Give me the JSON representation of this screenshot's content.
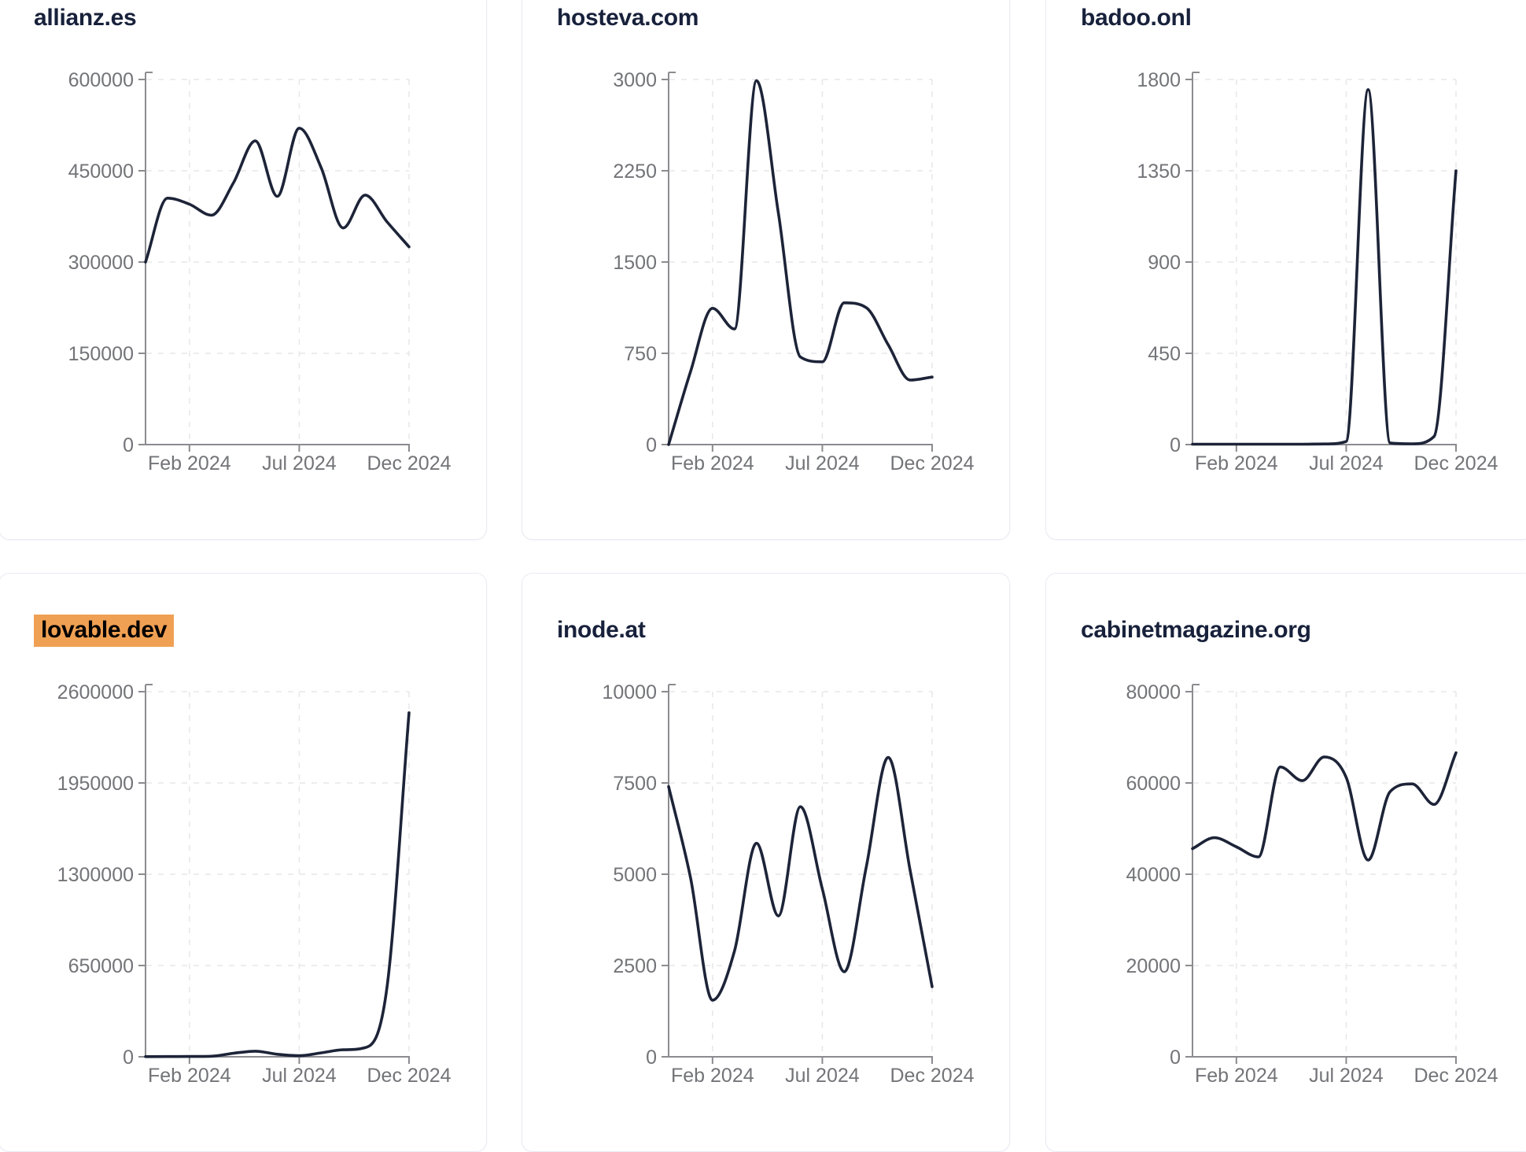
{
  "page": {
    "background": "#ffffff"
  },
  "theme": {
    "background": "#ffffff",
    "card_border": "#e9ebf4",
    "title": "#18213b",
    "line": "#1d2438",
    "axis": "#8b8b90",
    "ticktext": "#737478",
    "grid": "#e7e7ea",
    "highlight": "#f0a053",
    "highlight-text": "#000000"
  },
  "cards": [
    {
      "title": "allianz.es",
      "highlighted": false
    },
    {
      "title": "hosteva.com",
      "highlighted": false
    },
    {
      "title": "badoo.onl",
      "highlighted": false
    },
    {
      "title": "lovable.dev",
      "highlighted": true
    },
    {
      "title": "inode.at",
      "highlighted": false
    },
    {
      "title": "cabinetmagazine.org",
      "highlighted": false
    }
  ],
  "chart_data": [
    {
      "type": "line",
      "title": "allianz.es",
      "x": [
        "Dec 2023",
        "Jan 2024",
        "Feb 2024",
        "Mar 2024",
        "Apr 2024",
        "May 2024",
        "Jun 2024",
        "Jul 2024",
        "Aug 2024",
        "Sep 2024",
        "Oct 2024",
        "Nov 2024",
        "Dec 2024"
      ],
      "values": [
        300000,
        405000,
        395000,
        377000,
        430000,
        499000,
        408000,
        520000,
        455000,
        356000,
        410000,
        366000,
        325000
      ],
      "y_ticks": [
        0,
        150000,
        300000,
        450000,
        600000
      ],
      "ylim": [
        0,
        600000
      ],
      "x_tick_labels": [
        "Feb 2024",
        "Jul 2024",
        "Dec 2024"
      ],
      "x_tick_positions": [
        2,
        7,
        12
      ],
      "grid": true,
      "legend": "none"
    },
    {
      "type": "line",
      "title": "hosteva.com",
      "x": [
        "Dec 2023",
        "Jan 2024",
        "Feb 2024",
        "Mar 2024",
        "Apr 2024",
        "May 2024",
        "Jun 2024",
        "Jul 2024",
        "Aug 2024",
        "Sep 2024",
        "Oct 2024",
        "Nov 2024",
        "Dec 2024"
      ],
      "values": [
        0,
        600,
        1120,
        950,
        2990,
        1900,
        720,
        680,
        1165,
        1125,
        820,
        530,
        555
      ],
      "y_ticks": [
        0,
        750,
        1500,
        2250,
        3000
      ],
      "ylim": [
        0,
        3000
      ],
      "x_tick_labels": [
        "Feb 2024",
        "Jul 2024",
        "Dec 2024"
      ],
      "x_tick_positions": [
        2,
        7,
        12
      ],
      "grid": true,
      "legend": "none"
    },
    {
      "type": "line",
      "title": "badoo.onl",
      "x": [
        "Dec 2023",
        "Jan 2024",
        "Feb 2024",
        "Mar 2024",
        "Apr 2024",
        "May 2024",
        "Jun 2024",
        "Jul 2024",
        "Aug 2024",
        "Sep 2024",
        "Oct 2024",
        "Nov 2024",
        "Dec 2024"
      ],
      "values": [
        2,
        2,
        2,
        2,
        2,
        2,
        3,
        15,
        1750,
        8,
        4,
        40,
        1350
      ],
      "y_ticks": [
        0,
        450,
        900,
        1350,
        1800
      ],
      "ylim": [
        0,
        1800
      ],
      "x_tick_labels": [
        "Feb 2024",
        "Jul 2024",
        "Dec 2024"
      ],
      "x_tick_positions": [
        2,
        7,
        12
      ],
      "grid": true,
      "legend": "none"
    },
    {
      "type": "line",
      "title": "lovable.dev",
      "x": [
        "Dec 2023",
        "Jan 2024",
        "Feb 2024",
        "Mar 2024",
        "Apr 2024",
        "May 2024",
        "Jun 2024",
        "Jul 2024",
        "Aug 2024",
        "Sep 2024",
        "Oct 2024",
        "Nov 2024",
        "Dec 2024"
      ],
      "values": [
        1000,
        1500,
        2500,
        4000,
        25000,
        40000,
        18000,
        8000,
        28000,
        50000,
        65000,
        500000,
        2450000
      ],
      "y_ticks": [
        0,
        650000,
        1300000,
        1950000,
        2600000
      ],
      "ylim": [
        0,
        2600000
      ],
      "x_tick_labels": [
        "Feb 2024",
        "Jul 2024",
        "Dec 2024"
      ],
      "x_tick_positions": [
        2,
        7,
        12
      ],
      "grid": true,
      "legend": "none"
    },
    {
      "type": "line",
      "title": "inode.at",
      "x": [
        "Dec 2023",
        "Jan 2024",
        "Feb 2024",
        "Mar 2024",
        "Apr 2024",
        "May 2024",
        "Jun 2024",
        "Jul 2024",
        "Aug 2024",
        "Sep 2024",
        "Oct 2024",
        "Nov 2024",
        "Dec 2024"
      ],
      "values": [
        7400,
        4900,
        1550,
        2900,
        5850,
        3860,
        6850,
        4600,
        2330,
        5200,
        8200,
        5100,
        1920
      ],
      "y_ticks": [
        0,
        2500,
        5000,
        7500,
        10000
      ],
      "ylim": [
        0,
        10000
      ],
      "x_tick_labels": [
        "Feb 2024",
        "Jul 2024",
        "Dec 2024"
      ],
      "x_tick_positions": [
        2,
        7,
        12
      ],
      "grid": true,
      "legend": "none"
    },
    {
      "type": "line",
      "title": "cabinetmagazine.org",
      "x": [
        "Dec 2023",
        "Jan 2024",
        "Feb 2024",
        "Mar 2024",
        "Apr 2024",
        "May 2024",
        "Jun 2024",
        "Jul 2024",
        "Aug 2024",
        "Sep 2024",
        "Oct 2024",
        "Nov 2024",
        "Dec 2024"
      ],
      "values": [
        45600,
        48000,
        46000,
        43800,
        63500,
        60500,
        65700,
        61200,
        43100,
        58100,
        59800,
        55300,
        66600
      ],
      "y_ticks": [
        0,
        20000,
        40000,
        60000,
        80000
      ],
      "ylim": [
        0,
        80000
      ],
      "x_tick_labels": [
        "Feb 2024",
        "Jul 2024",
        "Dec 2024"
      ],
      "x_tick_positions": [
        2,
        7,
        12
      ],
      "grid": true,
      "legend": "none"
    }
  ]
}
